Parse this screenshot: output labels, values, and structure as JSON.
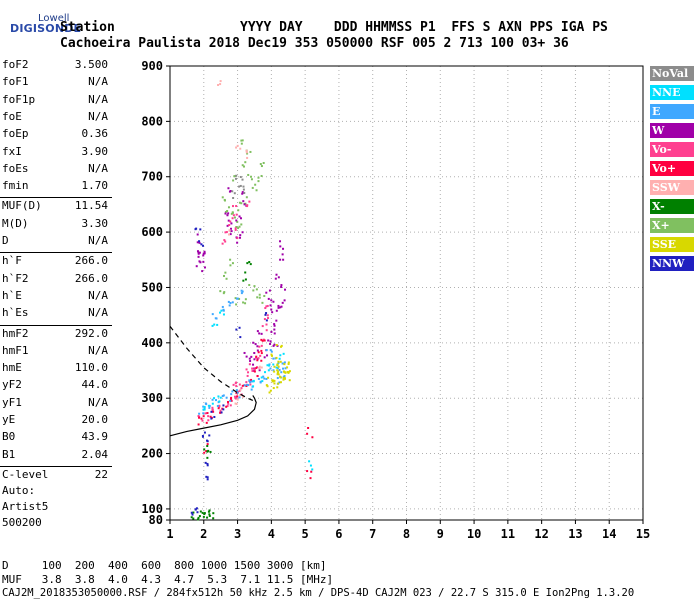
{
  "logo": {
    "line1": "Lowell",
    "line2": "DIGISONDE"
  },
  "header": {
    "line1": "Station                YYYY DAY    DDD HHMMSS P1  FFS S AXN PPS IGA PS",
    "line2": "Cachoeira Paulista 2018 Dec19 353 050000 RSF 005 2 713 100 03+ 36"
  },
  "params": [
    {
      "name": "foF2",
      "value": "3.500"
    },
    {
      "name": "foF1",
      "value": "N/A"
    },
    {
      "name": "foF1p",
      "value": "N/A"
    },
    {
      "name": "foE",
      "value": "N/A"
    },
    {
      "name": "foEp",
      "value": "0.36"
    },
    {
      "name": "fxI",
      "value": "3.90"
    },
    {
      "name": "foEs",
      "value": "N/A"
    },
    {
      "name": "fmin",
      "value": "1.70"
    },
    {
      "name": "MUF(D)",
      "value": "11.54"
    },
    {
      "name": "M(D)",
      "value": "3.30"
    },
    {
      "name": "D",
      "value": "N/A"
    },
    {
      "name": "h`F",
      "value": "266.0"
    },
    {
      "name": "h`F2",
      "value": "266.0"
    },
    {
      "name": "h`E",
      "value": "N/A"
    },
    {
      "name": "h`Es",
      "value": "N/A"
    },
    {
      "name": "hmF2",
      "value": "292.0"
    },
    {
      "name": "hmF1",
      "value": "N/A"
    },
    {
      "name": "hmE",
      "value": "110.0"
    },
    {
      "name": "yF2",
      "value": "44.0"
    },
    {
      "name": "yF1",
      "value": "N/A"
    },
    {
      "name": "yE",
      "value": "20.0"
    },
    {
      "name": "B0",
      "value": "43.9"
    },
    {
      "name": "B1",
      "value": "2.04"
    },
    {
      "name": "C-level",
      "value": "22"
    }
  ],
  "autoscaling": {
    "line1": "Auto:",
    "line2": "Artist5",
    "line3": "500200"
  },
  "legend": [
    {
      "label": "NoVal",
      "color": "#8c8c8c"
    },
    {
      "label": "NNE",
      "color": "#00e0ff"
    },
    {
      "label": "E",
      "color": "#40a8ff"
    },
    {
      "label": "W",
      "color": "#a000a8"
    },
    {
      "label": "Vo-",
      "color": "#ff4090"
    },
    {
      "label": "Vo+",
      "color": "#ff0040"
    },
    {
      "label": "SSW",
      "color": "#ffb0b0"
    },
    {
      "label": "X-",
      "color": "#008000"
    },
    {
      "label": "X+",
      "color": "#80c060"
    },
    {
      "label": "SSE",
      "color": "#d8d800"
    },
    {
      "label": "NNW",
      "color": "#2020c0"
    }
  ],
  "footer": {
    "line1": "D     100  200  400  600  800 1000 1500 3000 [km]",
    "line2": "MUF   3.8  3.8  4.0  4.3  4.7  5.3  7.1 11.5 [MHz]",
    "line3": "CAJ2M_2018353050000.RSF / 284fx512h 50 kHz 2.5 km / DPS-4D CAJ2M 023 / 22.7 S 315.0 E Ion2Png 1.3.20"
  },
  "chart_data": {
    "type": "scatter",
    "xlim": [
      1,
      15
    ],
    "ylim": [
      80,
      900
    ],
    "xticks": [
      1,
      2,
      3,
      4,
      5,
      6,
      7,
      8,
      9,
      10,
      11,
      12,
      13,
      14,
      15
    ],
    "yticks": [
      100,
      200,
      300,
      400,
      500,
      600,
      700,
      800,
      900
    ],
    "ytick_labels_extra": [
      80
    ],
    "grid": true,
    "legend_placement": "right",
    "series": [
      {
        "name": "X+",
        "color": "#80c060",
        "points": [
          [
            2.6,
            660
          ],
          [
            2.7,
            645
          ],
          [
            2.8,
            630
          ],
          [
            2.95,
            620
          ],
          [
            3.0,
            610
          ],
          [
            3.05,
            650
          ],
          [
            2.9,
            700
          ],
          [
            3.25,
            660
          ],
          [
            3.35,
            700
          ],
          [
            3.5,
            680
          ],
          [
            3.6,
            700
          ],
          [
            3.7,
            720
          ],
          [
            2.5,
            500
          ],
          [
            2.6,
            520
          ],
          [
            2.8,
            550
          ],
          [
            3.0,
            480
          ],
          [
            3.2,
            480
          ],
          [
            3.4,
            500
          ],
          [
            3.6,
            490
          ],
          [
            3.7,
            480
          ],
          [
            3.2,
            720
          ],
          [
            3.3,
            740
          ],
          [
            3.1,
            760
          ]
        ]
      },
      {
        "name": "W",
        "color": "#a000a8",
        "points": [
          [
            2.7,
            640
          ],
          [
            2.75,
            620
          ],
          [
            2.85,
            600
          ],
          [
            2.95,
            590
          ],
          [
            3.0,
            630
          ],
          [
            3.05,
            600
          ],
          [
            3.1,
            680
          ],
          [
            3.15,
            650
          ],
          [
            2.7,
            680
          ],
          [
            3.9,
            490
          ],
          [
            4.0,
            470
          ],
          [
            4.05,
            460
          ],
          [
            4.1,
            440
          ],
          [
            4.0,
            420
          ],
          [
            3.95,
            400
          ],
          [
            3.85,
            380
          ],
          [
            4.2,
            460
          ],
          [
            4.3,
            470
          ],
          [
            4.15,
            520
          ],
          [
            4.25,
            560
          ],
          [
            4.3,
            580
          ],
          [
            4.3,
            500
          ],
          [
            4.1,
            400
          ],
          [
            3.6,
            420
          ],
          [
            3.5,
            400
          ],
          [
            3.45,
            370
          ],
          [
            1.8,
            590
          ],
          [
            1.9,
            560
          ],
          [
            1.95,
            540
          ],
          [
            2.0,
            560
          ],
          [
            1.8,
            560
          ],
          [
            1.85,
            540
          ],
          [
            3.25,
            380
          ],
          [
            3.4,
            360
          ],
          [
            3.55,
            380
          ],
          [
            3.6,
            350
          ]
        ]
      },
      {
        "name": "Vo-",
        "color": "#ff4090",
        "points": [
          [
            1.9,
            265
          ],
          [
            2.1,
            270
          ],
          [
            2.3,
            278
          ],
          [
            2.5,
            285
          ],
          [
            2.7,
            292
          ],
          [
            2.9,
            300
          ],
          [
            3.1,
            315
          ],
          [
            3.3,
            330
          ],
          [
            3.5,
            350
          ],
          [
            3.6,
            375
          ],
          [
            3.7,
            400
          ],
          [
            3.75,
            430
          ],
          [
            3.8,
            450
          ],
          [
            3.85,
            470
          ],
          [
            2.6,
            580
          ],
          [
            2.7,
            610
          ],
          [
            2.8,
            625
          ],
          [
            2.9,
            640
          ],
          [
            3.0,
            600
          ],
          [
            3.3,
            650
          ],
          [
            3.0,
            330
          ],
          [
            3.2,
            345
          ],
          [
            3.4,
            360
          ],
          [
            2.9,
            320
          ]
        ]
      },
      {
        "name": "Vo+",
        "color": "#ff0040",
        "points": [
          [
            1.85,
            262
          ],
          [
            2.0,
            266
          ],
          [
            2.2,
            272
          ],
          [
            2.4,
            280
          ],
          [
            2.6,
            288
          ],
          [
            2.8,
            296
          ],
          [
            3.0,
            305
          ],
          [
            3.2,
            318
          ],
          [
            3.4,
            335
          ],
          [
            3.5,
            350
          ],
          [
            3.6,
            370
          ],
          [
            3.65,
            390
          ],
          [
            3.7,
            410
          ],
          [
            2.0,
            210
          ],
          [
            5.1,
            240
          ],
          [
            5.1,
            165
          ]
        ]
      },
      {
        "name": "E",
        "color": "#40a8ff",
        "points": [
          [
            1.9,
            280
          ],
          [
            2.0,
            285
          ],
          [
            2.2,
            290
          ],
          [
            2.4,
            295
          ],
          [
            2.6,
            300
          ],
          [
            2.8,
            305
          ],
          [
            3.0,
            310
          ],
          [
            3.2,
            318
          ],
          [
            3.4,
            325
          ],
          [
            3.6,
            335
          ],
          [
            3.8,
            345
          ],
          [
            4.0,
            360
          ],
          [
            4.2,
            350
          ],
          [
            2.3,
            450
          ],
          [
            2.5,
            460
          ],
          [
            2.7,
            470
          ],
          [
            2.9,
            480
          ],
          [
            3.1,
            490
          ],
          [
            3.4,
            340
          ],
          [
            3.9,
            380
          ],
          [
            4.1,
            370
          ],
          [
            4.2,
            330
          ],
          [
            4.3,
            340
          ],
          [
            4.35,
            360
          ],
          [
            4.4,
            350
          ]
        ]
      },
      {
        "name": "NNE",
        "color": "#00e0ff",
        "points": [
          [
            2.0,
            290
          ],
          [
            2.2,
            295
          ],
          [
            2.4,
            300
          ],
          [
            3.5,
            330
          ],
          [
            3.7,
            340
          ],
          [
            3.9,
            355
          ],
          [
            4.1,
            365
          ],
          [
            4.3,
            375
          ],
          [
            5.1,
            180
          ],
          [
            2.3,
            440
          ],
          [
            2.5,
            455
          ]
        ]
      },
      {
        "name": "SSE",
        "color": "#d8d800",
        "points": [
          [
            3.9,
            330
          ],
          [
            4.0,
            340
          ],
          [
            4.1,
            350
          ],
          [
            4.15,
            360
          ],
          [
            4.2,
            370
          ],
          [
            4.25,
            345
          ],
          [
            4.3,
            330
          ],
          [
            4.35,
            355
          ],
          [
            4.4,
            365
          ],
          [
            4.0,
            320
          ],
          [
            4.1,
            325
          ],
          [
            4.2,
            335
          ],
          [
            4.3,
            345
          ],
          [
            4.45,
            350
          ],
          [
            4.5,
            340
          ],
          [
            4.05,
            380
          ],
          [
            4.2,
            390
          ]
        ]
      },
      {
        "name": "X-",
        "color": "#008000",
        "points": [
          [
            1.7,
            90
          ],
          [
            1.8,
            90
          ],
          [
            1.9,
            92
          ],
          [
            2.0,
            90
          ],
          [
            2.1,
            92
          ],
          [
            2.2,
            90
          ],
          [
            2.0,
            210
          ],
          [
            2.1,
            200
          ],
          [
            3.2,
            520
          ],
          [
            3.3,
            540
          ]
        ]
      },
      {
        "name": "NNW",
        "color": "#2020c0",
        "points": [
          [
            1.7,
            92
          ],
          [
            1.8,
            95
          ],
          [
            2.0,
            240
          ],
          [
            2.05,
            230
          ],
          [
            2.0,
            180
          ],
          [
            2.05,
            160
          ],
          [
            1.8,
            600
          ],
          [
            1.9,
            580
          ],
          [
            3.0,
            420
          ],
          [
            3.8,
            450
          ],
          [
            2.2,
            270
          ],
          [
            2.5,
            280
          ]
        ]
      },
      {
        "name": "SSW",
        "color": "#ffb0b0",
        "points": [
          [
            2.4,
            870
          ],
          [
            3.0,
            760
          ],
          [
            3.2,
            740
          ],
          [
            2.8,
            600
          ],
          [
            3.6,
            360
          ],
          [
            2.9,
            300
          ],
          [
            3.1,
            310
          ]
        ]
      },
      {
        "name": "NoVal",
        "color": "#8c8c8c",
        "points": [
          [
            3.0,
            700
          ],
          [
            3.1,
            690
          ],
          [
            3.2,
            680
          ],
          [
            2.9,
            670
          ]
        ]
      }
    ],
    "curves": [
      {
        "name": "profile",
        "style": "solid",
        "points": [
          [
            1.0,
            232
          ],
          [
            1.5,
            240
          ],
          [
            2.0,
            246
          ],
          [
            2.5,
            252
          ],
          [
            3.0,
            260
          ],
          [
            3.3,
            268
          ],
          [
            3.5,
            280
          ],
          [
            3.55,
            292
          ],
          [
            3.5,
            300
          ],
          [
            3.45,
            305
          ]
        ]
      },
      {
        "name": "profile-extrapolation",
        "style": "dashed",
        "points": [
          [
            1.0,
            430
          ],
          [
            1.5,
            390
          ],
          [
            2.0,
            355
          ],
          [
            2.5,
            330
          ],
          [
            3.0,
            310
          ],
          [
            3.3,
            300
          ],
          [
            3.45,
            296
          ]
        ]
      }
    ]
  }
}
